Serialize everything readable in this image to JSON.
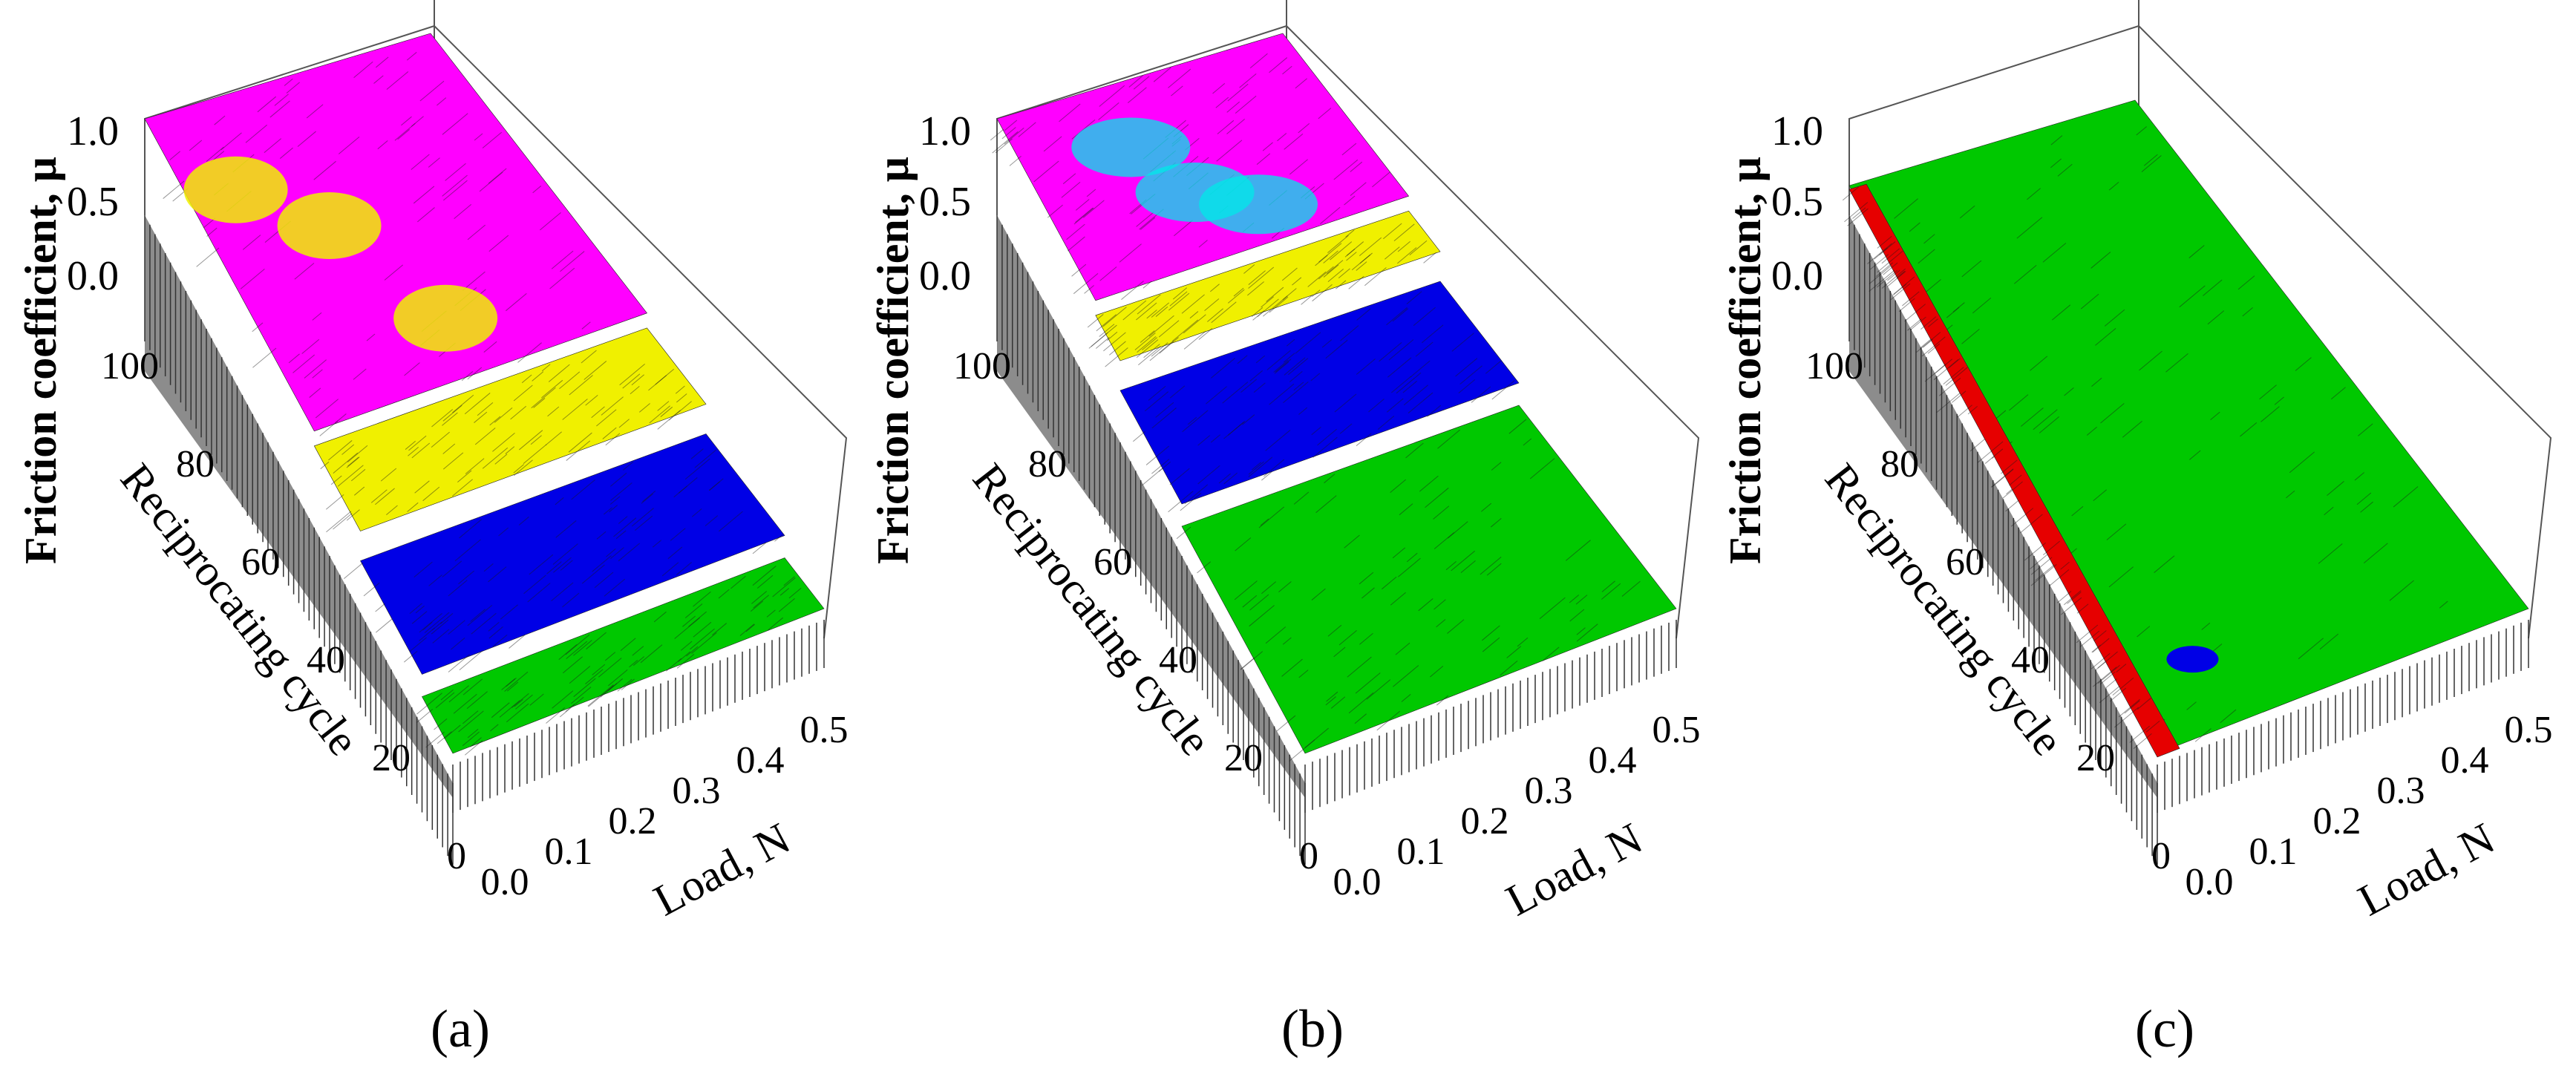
{
  "chart_data": [
    {
      "type": "surface3d",
      "panel": "(a)",
      "xlabel": "Load, N",
      "ylabel": "Reciprocating cycle",
      "zlabel": "Friction coefficient, μ",
      "x_ticks": [
        "0.0",
        "0.1",
        "0.2",
        "0.3",
        "0.4",
        "0.5"
      ],
      "y_ticks": [
        "0",
        "20",
        "40",
        "60",
        "80",
        "100"
      ],
      "z_ticks": [
        "0.0",
        "0.5",
        "1.0"
      ],
      "xlim": [
        0,
        0.5
      ],
      "ylim": [
        0,
        100
      ],
      "zlim": [
        0,
        1.0
      ],
      "colors": {
        "low": "#00c800",
        "mid_low": "#0000e6",
        "mid": "#f0f000",
        "high": "#ff00ff",
        "peak": "#00e8e8"
      },
      "regions": [
        {
          "cycles": [
            0,
            10
          ],
          "mu_level": "low",
          "color": "#00c800"
        },
        {
          "cycles": [
            10,
            30
          ],
          "mu_level": "mid_low",
          "color": "#0000e6"
        },
        {
          "cycles": [
            30,
            45
          ],
          "mu_level": "mid",
          "color": "#f0f000"
        },
        {
          "cycles": [
            45,
            100
          ],
          "mu_level": "high",
          "color": "#ff00ff"
        }
      ]
    },
    {
      "type": "surface3d",
      "panel": "(b)",
      "xlabel": "Load, N",
      "ylabel": "Reciprocating cycle",
      "zlabel": "Friction coefficient, μ",
      "x_ticks": [
        "0.0",
        "0.1",
        "0.2",
        "0.3",
        "0.4",
        "0.5"
      ],
      "y_ticks": [
        "0",
        "20",
        "40",
        "60",
        "80",
        "100"
      ],
      "z_ticks": [
        "0.0",
        "0.5",
        "1.0"
      ],
      "xlim": [
        0,
        0.5
      ],
      "ylim": [
        0,
        100
      ],
      "zlim": [
        0,
        1.0
      ],
      "regions": [
        {
          "cycles": [
            0,
            40
          ],
          "mu_level": "low",
          "color": "#00c800"
        },
        {
          "cycles": [
            40,
            60
          ],
          "mu_level": "mid_low",
          "color": "#0000e6"
        },
        {
          "cycles": [
            60,
            68
          ],
          "mu_level": "mid",
          "color": "#f0f000"
        },
        {
          "cycles": [
            68,
            100
          ],
          "mu_level": "high",
          "color": "#ff00ff"
        }
      ]
    },
    {
      "type": "surface3d",
      "panel": "(c)",
      "xlabel": "Load, N",
      "ylabel": "Reciprocating cycle",
      "zlabel": "Friction coefficient, μ",
      "x_ticks": [
        "0.0",
        "0.1",
        "0.2",
        "0.3",
        "0.4",
        "0.5"
      ],
      "y_ticks": [
        "0",
        "20",
        "40",
        "60",
        "80",
        "100"
      ],
      "z_ticks": [
        "0.0",
        "0.5",
        "1.0"
      ],
      "xlim": [
        0,
        0.5
      ],
      "ylim": [
        0,
        100
      ],
      "zlim": [
        0,
        1.0
      ],
      "regions": [
        {
          "cycles": [
            0,
            100
          ],
          "mu_level": "low",
          "color": "#00c800"
        },
        {
          "cycles": [
            0,
            100
          ],
          "loads": [
            0.0,
            0.03
          ],
          "mu_level": "very_low",
          "color": "#e60000"
        }
      ]
    }
  ],
  "captions": [
    "(a)",
    "(b)",
    "(c)"
  ]
}
